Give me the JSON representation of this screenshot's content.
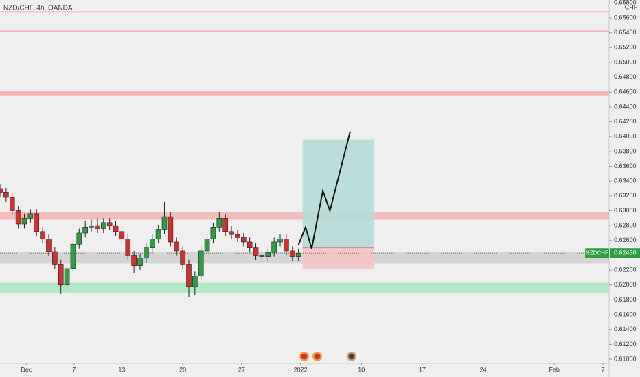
{
  "chart_data": {
    "type": "candlestick",
    "title": "NZD/CHF, 4h, OANDA",
    "axis_unit": "CHF",
    "xlim": [
      0,
      300
    ],
    "ylim": [
      0.60945,
      0.6584
    ],
    "grid": false,
    "up_color": "#2e9e45",
    "down_color": "#d32f2f",
    "xticks": [
      {
        "value": 13,
        "label": "Dec"
      },
      {
        "value": 36.5,
        "label": "7"
      },
      {
        "value": 60,
        "label": "13"
      },
      {
        "value": 90,
        "label": "20"
      },
      {
        "value": 119,
        "label": "27"
      },
      {
        "value": 148,
        "label": "2022"
      },
      {
        "value": 178,
        "label": "10"
      },
      {
        "value": 208,
        "label": "17"
      },
      {
        "value": 238,
        "label": "24"
      },
      {
        "value": 273,
        "label": "Feb"
      },
      {
        "value": 297,
        "label": "7"
      }
    ],
    "yticks": [
      {
        "value": 0.658,
        "label": "0.65800"
      },
      {
        "value": 0.656,
        "label": "0.65600"
      },
      {
        "value": 0.654,
        "label": "0.65400"
      },
      {
        "value": 0.652,
        "label": "0.65200"
      },
      {
        "value": 0.65,
        "label": "0.65000"
      },
      {
        "value": 0.648,
        "label": "0.64800"
      },
      {
        "value": 0.646,
        "label": "0.64600"
      },
      {
        "value": 0.644,
        "label": "0.64400"
      },
      {
        "value": 0.642,
        "label": "0.64200"
      },
      {
        "value": 0.64,
        "label": "0.64000"
      },
      {
        "value": 0.638,
        "label": "0.63800"
      },
      {
        "value": 0.636,
        "label": "0.63600"
      },
      {
        "value": 0.634,
        "label": "0.63400"
      },
      {
        "value": 0.632,
        "label": "0.63200"
      },
      {
        "value": 0.63,
        "label": "0.63000"
      },
      {
        "value": 0.628,
        "label": "0.62800"
      },
      {
        "value": 0.626,
        "label": "0.62600"
      },
      {
        "value": 0.622,
        "label": "0.62200"
      },
      {
        "value": 0.62,
        "label": "0.62000"
      },
      {
        "value": 0.618,
        "label": "0.61800"
      },
      {
        "value": 0.616,
        "label": "0.61600"
      },
      {
        "value": 0.614,
        "label": "0.61400"
      },
      {
        "value": 0.612,
        "label": "0.61200"
      },
      {
        "value": 0.61,
        "label": "0.61000"
      }
    ],
    "x": [
      0,
      3,
      6,
      9,
      12,
      15,
      18,
      21,
      24,
      27,
      30,
      33,
      36,
      39,
      42,
      45,
      48,
      51,
      54,
      57,
      60,
      63,
      66,
      69,
      72,
      75,
      78,
      81,
      84,
      87,
      90,
      93,
      96,
      99,
      102,
      105,
      108,
      111,
      114,
      117,
      120,
      123,
      126,
      129,
      132,
      135,
      138,
      141,
      144,
      147
    ],
    "open": [
      0.633,
      0.6325,
      0.6318,
      0.63,
      0.6282,
      0.629,
      0.6296,
      0.6272,
      0.6262,
      0.6245,
      0.6228,
      0.62,
      0.6222,
      0.6255,
      0.627,
      0.6278,
      0.628,
      0.6276,
      0.6284,
      0.628,
      0.6272,
      0.6262,
      0.624,
      0.6226,
      0.6236,
      0.625,
      0.6262,
      0.6275,
      0.6292,
      0.6258,
      0.6246,
      0.6228,
      0.6198,
      0.6212,
      0.6246,
      0.6262,
      0.6278,
      0.629,
      0.6272,
      0.6268,
      0.6264,
      0.6258,
      0.625,
      0.624,
      0.6238,
      0.6244,
      0.6258,
      0.6262,
      0.6246,
      0.6238
    ],
    "high": [
      0.6336,
      0.6331,
      0.6324,
      0.6306,
      0.6296,
      0.6302,
      0.6302,
      0.6278,
      0.6268,
      0.6251,
      0.6234,
      0.6228,
      0.6261,
      0.6276,
      0.6286,
      0.6288,
      0.629,
      0.629,
      0.629,
      0.6286,
      0.6278,
      0.6268,
      0.6246,
      0.6242,
      0.6256,
      0.6268,
      0.6281,
      0.6312,
      0.6298,
      0.6264,
      0.6252,
      0.6234,
      0.6218,
      0.6252,
      0.6268,
      0.6284,
      0.6298,
      0.6296,
      0.628,
      0.6274,
      0.627,
      0.6264,
      0.6256,
      0.6246,
      0.625,
      0.6264,
      0.6268,
      0.6268,
      0.6252,
      0.6249
    ],
    "low": [
      0.6319,
      0.6312,
      0.6294,
      0.6276,
      0.6276,
      0.6284,
      0.6266,
      0.6256,
      0.6239,
      0.6222,
      0.6188,
      0.6194,
      0.6216,
      0.6249,
      0.6264,
      0.6272,
      0.627,
      0.627,
      0.6274,
      0.6266,
      0.6256,
      0.6234,
      0.6216,
      0.622,
      0.623,
      0.6244,
      0.6256,
      0.6269,
      0.6252,
      0.624,
      0.6222,
      0.6184,
      0.6186,
      0.6206,
      0.624,
      0.6256,
      0.6272,
      0.6266,
      0.6262,
      0.6258,
      0.6252,
      0.6244,
      0.6234,
      0.6232,
      0.6232,
      0.6238,
      0.6252,
      0.624,
      0.6232,
      0.6232
    ],
    "close": [
      0.6325,
      0.6318,
      0.63,
      0.6282,
      0.629,
      0.6296,
      0.6272,
      0.6262,
      0.6245,
      0.6228,
      0.62,
      0.6222,
      0.6255,
      0.627,
      0.6278,
      0.628,
      0.6276,
      0.6284,
      0.628,
      0.6272,
      0.6262,
      0.624,
      0.6226,
      0.6236,
      0.625,
      0.6262,
      0.6275,
      0.6292,
      0.6258,
      0.6246,
      0.6228,
      0.6198,
      0.6212,
      0.6246,
      0.6262,
      0.6278,
      0.629,
      0.6272,
      0.6268,
      0.6264,
      0.6258,
      0.625,
      0.624,
      0.6238,
      0.6244,
      0.6258,
      0.6262,
      0.6246,
      0.6238,
      0.6243
    ],
    "zones": [
      {
        "range": [
          0.6567,
          0.6569
        ],
        "color": "#f4b6b6"
      },
      {
        "range": [
          0.6541,
          0.6543
        ],
        "color": "#f2a9a9"
      },
      {
        "range": [
          0.6455,
          0.6461
        ],
        "color": "#f2a9a9"
      },
      {
        "range": [
          0.6288,
          0.6298
        ],
        "color": "#f5b3b3"
      },
      {
        "range": [
          0.6229,
          0.6245
        ],
        "color": "#cfcfcf"
      },
      {
        "range": [
          0.6189,
          0.6203
        ],
        "color": "#a8e6bf"
      }
    ],
    "position": {
      "x": [
        149,
        184
      ],
      "entry": 0.625,
      "target": 0.6396,
      "stop": 0.6221,
      "profit_color": "#b4dcd6",
      "loss_color": "#f3c3c6"
    },
    "projection": {
      "x": [
        147,
        150.5,
        153.5,
        159,
        162.5,
        172.5
      ],
      "y": [
        0.6254,
        0.6278,
        0.6249,
        0.6327,
        0.63,
        0.6407
      ],
      "color": "#111111"
    },
    "last_price": {
      "symbol": "NZDCHF",
      "value": 0.6243,
      "value_label": "0.62430",
      "color": "#2e9e45"
    }
  }
}
